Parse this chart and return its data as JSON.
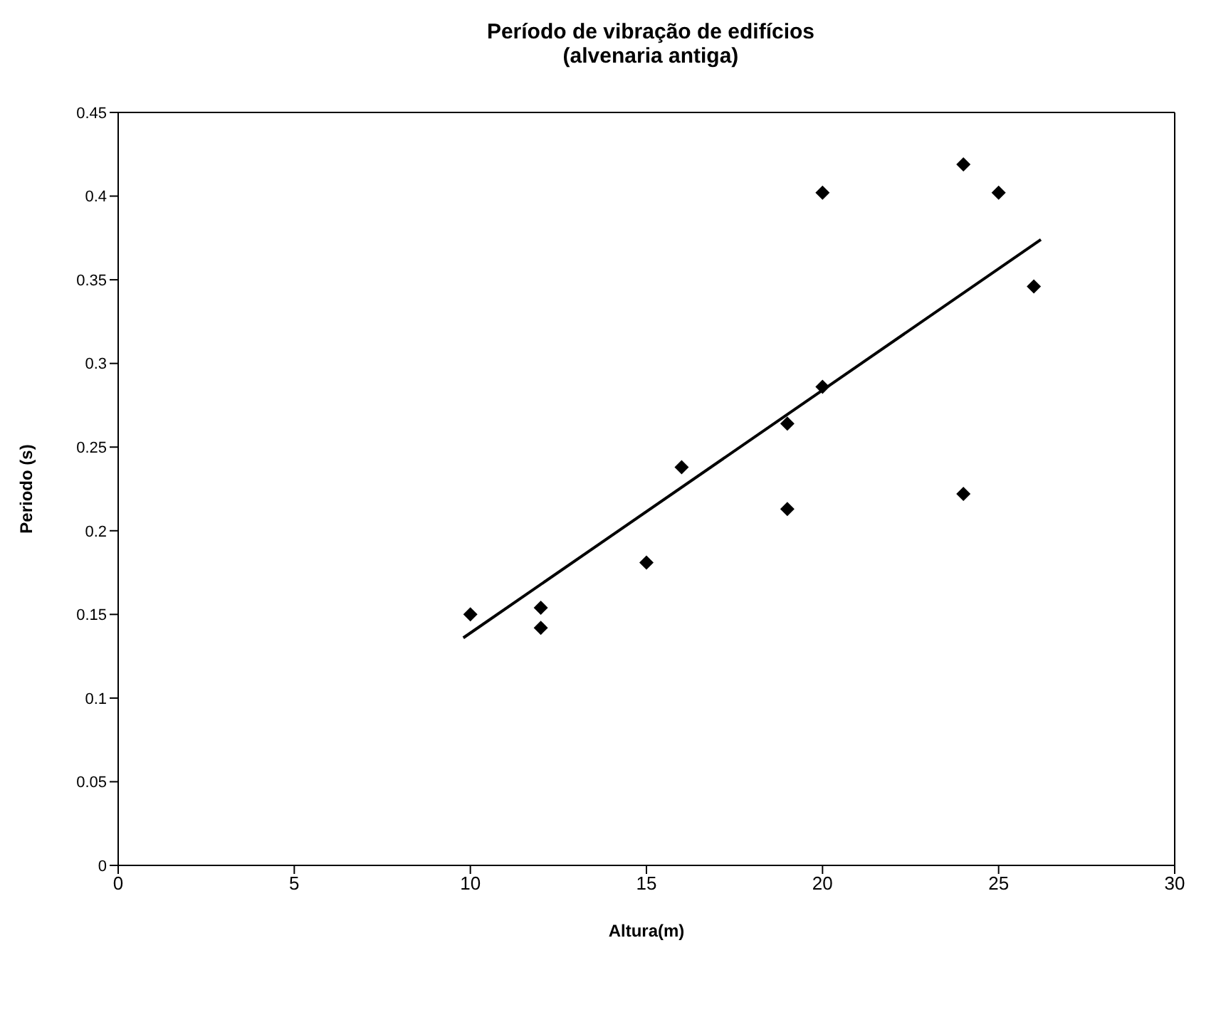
{
  "chart_data": {
    "type": "scatter",
    "title": "Período de vibração de edifícios",
    "subtitle": "(alvenaria antiga)",
    "xlabel": "Altura(m)",
    "ylabel": "Periodo (s)",
    "xlim": [
      0,
      30
    ],
    "xticks": [
      0,
      5,
      10,
      15,
      20,
      25,
      30
    ],
    "ylim": [
      0,
      0.45
    ],
    "yticks": [
      0,
      0.05,
      0.1,
      0.15,
      0.2,
      0.25,
      0.3,
      0.35,
      0.4,
      0.45
    ],
    "marker": "diamond",
    "series": [
      {
        "color": "#000000",
        "x": [
          10,
          12,
          12,
          15,
          16,
          19,
          19,
          20,
          20,
          24,
          24,
          25,
          26
        ],
        "values": [
          0.15,
          0.154,
          0.142,
          0.181,
          0.238,
          0.264,
          0.213,
          0.402,
          0.286,
          0.419,
          0.222,
          0.402,
          0.346
        ]
      },
      {
        "type": "line",
        "color": "#000000",
        "line_style": "solid",
        "marker": "none",
        "x": [
          9.8,
          26.2
        ],
        "values": [
          0.136,
          0.374
        ]
      }
    ]
  }
}
